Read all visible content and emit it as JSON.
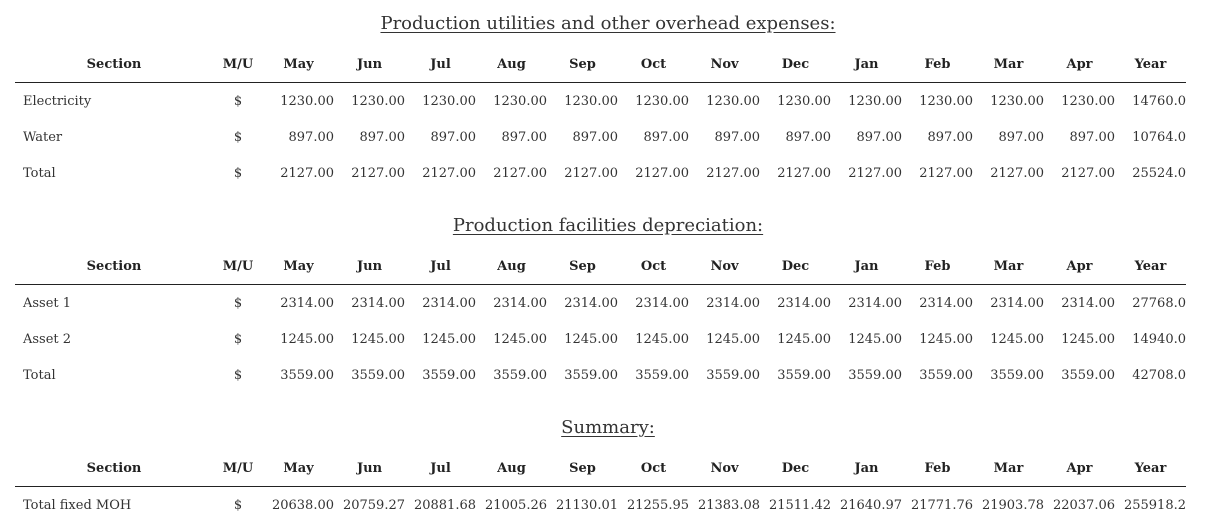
{
  "columns": [
    "Section",
    "M/U",
    "May",
    "Jun",
    "Jul",
    "Aug",
    "Sep",
    "Oct",
    "Nov",
    "Dec",
    "Jan",
    "Feb",
    "Mar",
    "Apr",
    "Year"
  ],
  "tables": [
    {
      "title": "Production utilities and other overhead expenses:",
      "rows": [
        {
          "name": "Electricity",
          "mu": "$",
          "values": [
            "1230.00",
            "1230.00",
            "1230.00",
            "1230.00",
            "1230.00",
            "1230.00",
            "1230.00",
            "1230.00",
            "1230.00",
            "1230.00",
            "1230.00",
            "1230.00",
            "14760.0"
          ]
        },
        {
          "name": "Water",
          "mu": "$",
          "values": [
            "897.00",
            "897.00",
            "897.00",
            "897.00",
            "897.00",
            "897.00",
            "897.00",
            "897.00",
            "897.00",
            "897.00",
            "897.00",
            "897.00",
            "10764.0"
          ]
        },
        {
          "name": "Total",
          "mu": "$",
          "values": [
            "2127.00",
            "2127.00",
            "2127.00",
            "2127.00",
            "2127.00",
            "2127.00",
            "2127.00",
            "2127.00",
            "2127.00",
            "2127.00",
            "2127.00",
            "2127.00",
            "25524.0"
          ]
        }
      ]
    },
    {
      "title": "Production facilities depreciation:",
      "rows": [
        {
          "name": "Asset 1",
          "mu": "$",
          "values": [
            "2314.00",
            "2314.00",
            "2314.00",
            "2314.00",
            "2314.00",
            "2314.00",
            "2314.00",
            "2314.00",
            "2314.00",
            "2314.00",
            "2314.00",
            "2314.00",
            "27768.0"
          ]
        },
        {
          "name": "Asset 2",
          "mu": "$",
          "values": [
            "1245.00",
            "1245.00",
            "1245.00",
            "1245.00",
            "1245.00",
            "1245.00",
            "1245.00",
            "1245.00",
            "1245.00",
            "1245.00",
            "1245.00",
            "1245.00",
            "14940.0"
          ]
        },
        {
          "name": "Total",
          "mu": "$",
          "values": [
            "3559.00",
            "3559.00",
            "3559.00",
            "3559.00",
            "3559.00",
            "3559.00",
            "3559.00",
            "3559.00",
            "3559.00",
            "3559.00",
            "3559.00",
            "3559.00",
            "42708.0"
          ]
        }
      ]
    },
    {
      "title": "Summary:",
      "rows": [
        {
          "name": "Total fixed MOH",
          "mu": "$",
          "values": [
            "20638.00",
            "20759.27",
            "20881.68",
            "21005.26",
            "21130.01",
            "21255.95",
            "21383.08",
            "21511.42",
            "21640.97",
            "21771.76",
            "21903.78",
            "22037.06",
            "255918.2"
          ]
        }
      ]
    }
  ]
}
